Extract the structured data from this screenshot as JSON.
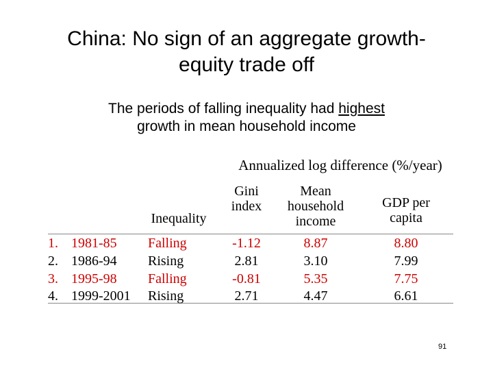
{
  "slide": {
    "title_line1": "China: No sign of an aggregate growth-",
    "title_line2": "equity trade off",
    "subtitle_line1_pre": "The periods of falling inequality had ",
    "subtitle_line1_underlined": "highest",
    "subtitle_line2": "growth in mean household income",
    "page_number": "91"
  },
  "table": {
    "group_header": "Annualized log difference (%/year)",
    "columns": {
      "inequality": "Inequality",
      "gini": [
        "Gini",
        "index"
      ],
      "mean": [
        "Mean",
        "household",
        "income"
      ],
      "gdp": [
        "GDP per",
        "capita"
      ]
    },
    "rows": [
      {
        "num": "1.",
        "period": "1981-85",
        "inequality": "Falling",
        "gini": "-1.12",
        "mean": "8.87",
        "gdp": "8.80",
        "highlight": true
      },
      {
        "num": "2.",
        "period": "1986-94",
        "inequality": "Rising",
        "gini": "2.81",
        "mean": "3.10",
        "gdp": "7.99",
        "highlight": false
      },
      {
        "num": "3.",
        "period": "1995-98",
        "inequality": "Falling",
        "gini": "-0.81",
        "mean": "5.35",
        "gdp": "7.75",
        "highlight": true
      },
      {
        "num": "4.",
        "period": "1999-2001",
        "inequality": "Rising",
        "gini": "2.71",
        "mean": "4.47",
        "gdp": "6.61",
        "highlight": false
      }
    ],
    "highlight_color": "#cc0000"
  }
}
